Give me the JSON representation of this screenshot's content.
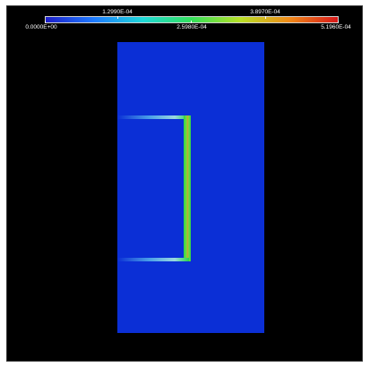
{
  "scalebar": {
    "top_labels": [
      "1.2990E-04",
      "3.8970E-04"
    ],
    "bottom_labels": [
      "0.0000E+00",
      "2.5980E-04",
      "5.1960E-04"
    ],
    "colors": [
      "#1e1ec8",
      "#1e7bff",
      "#1ed8d8",
      "#33e05a",
      "#b8e026",
      "#f08a18",
      "#d8181a"
    ]
  },
  "field": {
    "background_color": "#0b2fd6",
    "highlight_color": "#29d44a",
    "stripe_color": "#7ad840"
  }
}
